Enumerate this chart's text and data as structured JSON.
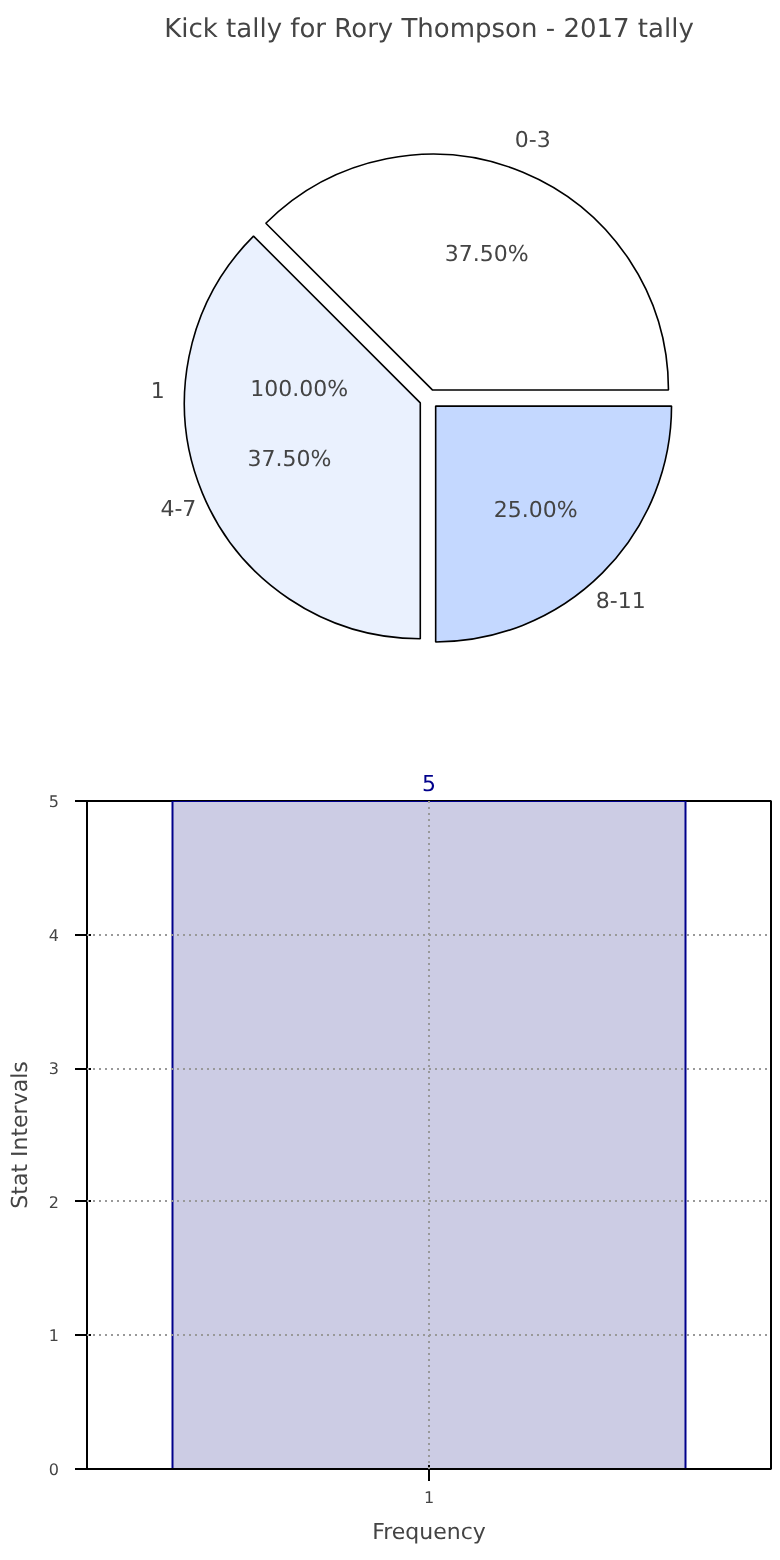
{
  "chart_data": [
    {
      "type": "pie",
      "title": "Kick tally for Rory Thompson - 2017 tally",
      "categories": [
        "0-3",
        "4-7",
        "8-11"
      ],
      "values": [
        37.5,
        37.5,
        25
      ],
      "colors": [
        "#ffffff",
        "#eaf1fe",
        "#c4d8ff"
      ],
      "value_labels": [
        "37.50%",
        "37.50%",
        "25.00%"
      ],
      "annotations": [
        "1",
        "100.00%"
      ]
    },
    {
      "type": "bar",
      "categories": [
        "1"
      ],
      "values": [
        5
      ],
      "color": "#cccce4",
      "xlabel": "Frequency",
      "ylabel": "Stat Intervals",
      "ylim": [
        0,
        5
      ],
      "yticks": [
        0,
        1,
        2,
        3,
        4,
        5
      ],
      "grid": true,
      "data_labels": true
    }
  ]
}
